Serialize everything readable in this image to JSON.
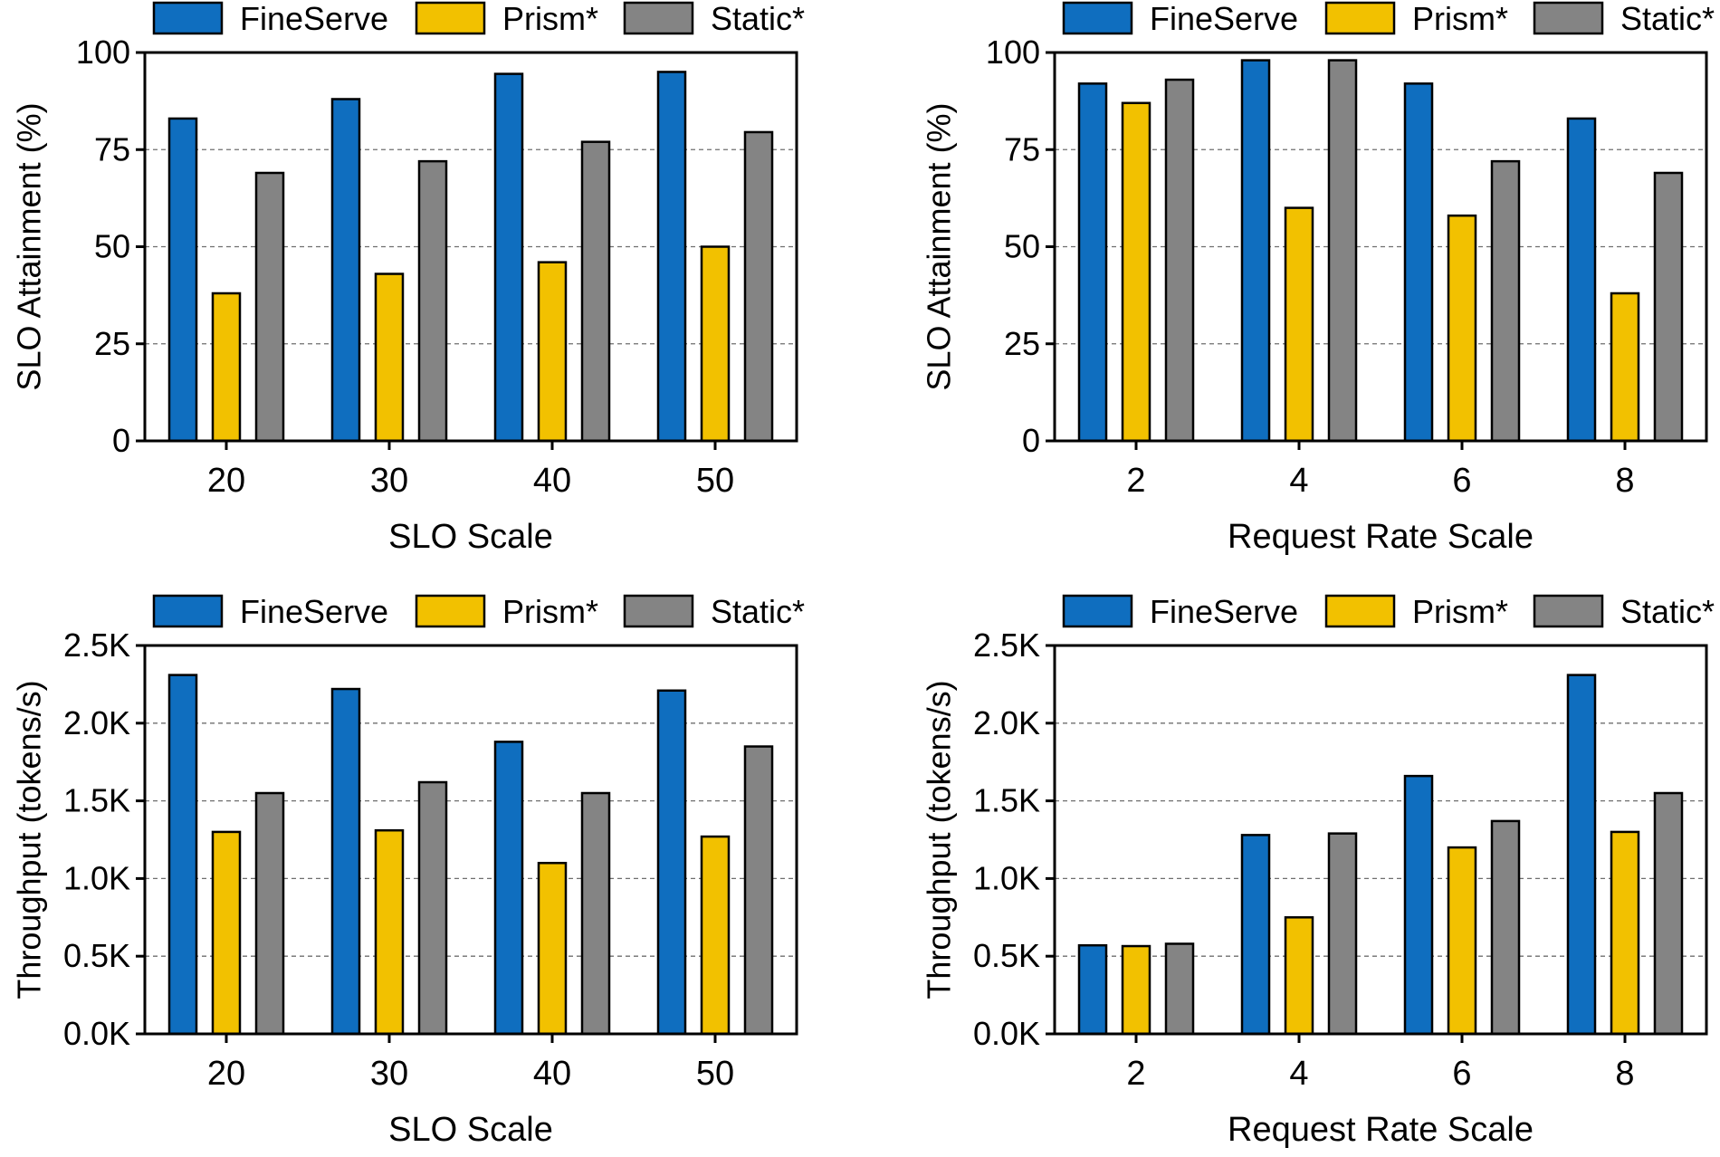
{
  "colors": {
    "FineServe": "#0f6ebf",
    "Prism*": "#f2c100",
    "Static*": "#848484",
    "grid": "#6f6f6f",
    "axis": "#000000"
  },
  "chart_data": [
    {
      "type": "bar",
      "id": "top-left",
      "xlabel": "SLO Scale",
      "ylabel": "SLO Attainment (%)",
      "ylim": [
        0,
        100
      ],
      "yticks": [
        0,
        25,
        50,
        75,
        100
      ],
      "ytick_labels": [
        "0",
        "25",
        "50",
        "75",
        "100"
      ],
      "grid": "horizontal-dashed",
      "legend": "top",
      "categories": [
        "20",
        "30",
        "40",
        "50"
      ],
      "series": [
        {
          "name": "FineServe",
          "values": [
            83,
            88,
            94.5,
            95
          ]
        },
        {
          "name": "Prism*",
          "values": [
            38,
            43,
            46,
            50
          ]
        },
        {
          "name": "Static*",
          "values": [
            69,
            72,
            77,
            79.5
          ]
        }
      ]
    },
    {
      "type": "bar",
      "id": "top-right",
      "xlabel": "Request Rate Scale",
      "ylabel": "SLO Attainment (%)",
      "ylim": [
        0,
        100
      ],
      "yticks": [
        0,
        25,
        50,
        75,
        100
      ],
      "ytick_labels": [
        "0",
        "25",
        "50",
        "75",
        "100"
      ],
      "grid": "horizontal-dashed",
      "legend": "top",
      "categories": [
        "2",
        "4",
        "6",
        "8"
      ],
      "series": [
        {
          "name": "FineServe",
          "values": [
            92,
            98,
            92,
            83
          ]
        },
        {
          "name": "Prism*",
          "values": [
            87,
            60,
            58,
            38
          ]
        },
        {
          "name": "Static*",
          "values": [
            93,
            98,
            72,
            69
          ]
        }
      ]
    },
    {
      "type": "bar",
      "id": "bottom-left",
      "xlabel": "SLO Scale",
      "ylabel": "Throughput (tokens/s)",
      "ylim": [
        0,
        2500
      ],
      "yticks": [
        0,
        500,
        1000,
        1500,
        2000,
        2500
      ],
      "ytick_labels": [
        "0.0K",
        "0.5K",
        "1.0K",
        "1.5K",
        "2.0K",
        "2.5K"
      ],
      "grid": "horizontal-dashed",
      "legend": "top",
      "categories": [
        "20",
        "30",
        "40",
        "50"
      ],
      "series": [
        {
          "name": "FineServe",
          "values": [
            2310,
            2220,
            1880,
            2210
          ]
        },
        {
          "name": "Prism*",
          "values": [
            1300,
            1310,
            1100,
            1270
          ]
        },
        {
          "name": "Static*",
          "values": [
            1550,
            1620,
            1550,
            1850
          ]
        }
      ]
    },
    {
      "type": "bar",
      "id": "bottom-right",
      "xlabel": "Request Rate Scale",
      "ylabel": "Throughput (tokens/s)",
      "ylim": [
        0,
        2500
      ],
      "yticks": [
        0,
        500,
        1000,
        1500,
        2000,
        2500
      ],
      "ytick_labels": [
        "0.0K",
        "0.5K",
        "1.0K",
        "1.5K",
        "2.0K",
        "2.5K"
      ],
      "grid": "horizontal-dashed",
      "legend": "top",
      "categories": [
        "2",
        "4",
        "6",
        "8"
      ],
      "series": [
        {
          "name": "FineServe",
          "values": [
            570,
            1280,
            1660,
            2310
          ]
        },
        {
          "name": "Prism*",
          "values": [
            565,
            750,
            1200,
            1300
          ]
        },
        {
          "name": "Static*",
          "values": [
            580,
            1290,
            1370,
            1550
          ]
        }
      ]
    }
  ]
}
